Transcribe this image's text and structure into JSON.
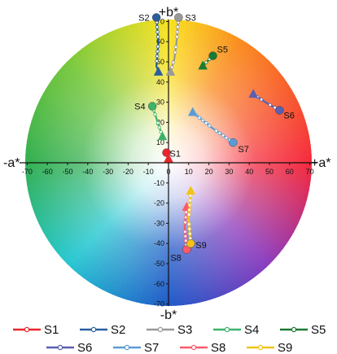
{
  "chart_data": {
    "type": "scatter",
    "title": "",
    "axis_labels": {
      "top": "+b*",
      "bottom": "-b*",
      "left": "-a*",
      "right": "+a*"
    },
    "xlim": [
      -75,
      75
    ],
    "ylim": [
      -75,
      75
    ],
    "x_ticks": [
      -70,
      -60,
      -50,
      -40,
      -30,
      -20,
      -10,
      0,
      10,
      20,
      30,
      40,
      50,
      60,
      70
    ],
    "x_tick_labels": [
      "-70",
      "-60",
      "-50",
      "-40",
      "-30",
      "-20",
      "-10",
      "0",
      "10",
      "20",
      "30",
      "40",
      "50",
      "60",
      "70"
    ],
    "y_ticks": [
      -70,
      -60,
      -50,
      -40,
      -30,
      -20,
      -10,
      10,
      20,
      30,
      40,
      50,
      60,
      70
    ],
    "y_tick_labels": [
      "-70",
      "-60",
      "-50",
      "-40",
      "-30",
      "-20",
      "-10",
      "10",
      "20",
      "30",
      "40",
      "50",
      "60",
      "70"
    ],
    "background": "CIELAB a*b* color wheel",
    "grid": false,
    "legend_position": "bottom",
    "series": [
      {
        "name": "S1",
        "color": "#e8262b",
        "start_marker": "circle",
        "end_marker": "triangle",
        "points": [
          [
            -1,
            5
          ],
          [
            0,
            2
          ]
        ]
      },
      {
        "name": "S2",
        "color": "#2a5f9c",
        "start_marker": "circle",
        "end_marker": "triangle",
        "points": [
          [
            -6,
            72
          ],
          [
            -5,
            60
          ],
          [
            -6,
            48
          ],
          [
            -5,
            45
          ]
        ]
      },
      {
        "name": "S3",
        "color": "#999999",
        "start_marker": "circle",
        "end_marker": "triangle",
        "points": [
          [
            5,
            72
          ],
          [
            4,
            60
          ],
          [
            3,
            52
          ],
          [
            1,
            45
          ]
        ]
      },
      {
        "name": "S4",
        "color": "#3db36a",
        "start_marker": "circle",
        "end_marker": "triangle",
        "points": [
          [
            -8,
            28
          ],
          [
            -6,
            22
          ],
          [
            -3,
            13
          ]
        ]
      },
      {
        "name": "S5",
        "color": "#1a7a32",
        "start_marker": "circle",
        "end_marker": "triangle",
        "points": [
          [
            22,
            53
          ],
          [
            17,
            48
          ]
        ]
      },
      {
        "name": "S6",
        "color": "#5a5fb0",
        "start_marker": "circle",
        "end_marker": "triangle",
        "points": [
          [
            55,
            26
          ],
          [
            48,
            30
          ],
          [
            42,
            34
          ]
        ]
      },
      {
        "name": "S7",
        "color": "#5b9bd5",
        "start_marker": "circle",
        "end_marker": "triangle",
        "points": [
          [
            32,
            10
          ],
          [
            22,
            17
          ],
          [
            12,
            25
          ]
        ]
      },
      {
        "name": "S8",
        "color": "#ff5a6a",
        "start_marker": "circle",
        "end_marker": "triangle",
        "points": [
          [
            9,
            -43
          ],
          [
            8,
            -32
          ],
          [
            9,
            -22
          ]
        ]
      },
      {
        "name": "S9",
        "color": "#f2c418",
        "start_marker": "circle",
        "end_marker": "triangle",
        "points": [
          [
            11,
            -40
          ],
          [
            10,
            -28
          ],
          [
            11,
            -14
          ]
        ]
      }
    ],
    "point_labels": [
      {
        "text": "S1",
        "series": "S1"
      },
      {
        "text": "S2",
        "series": "S2"
      },
      {
        "text": "S3",
        "series": "S3"
      },
      {
        "text": "S4",
        "series": "S4"
      },
      {
        "text": "S5",
        "series": "S5"
      },
      {
        "text": "S6",
        "series": "S6"
      },
      {
        "text": "S7",
        "series": "S7"
      },
      {
        "text": "S8",
        "series": "S8"
      },
      {
        "text": "S9",
        "series": "S9"
      }
    ]
  }
}
